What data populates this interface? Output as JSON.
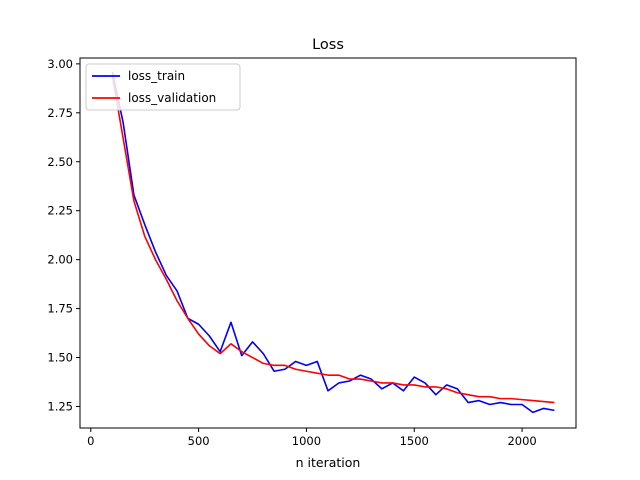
{
  "chart_data": {
    "type": "line",
    "title": "Loss",
    "xlabel": "n iteration",
    "ylabel": "",
    "xlim": [
      -50,
      2250
    ],
    "ylim": [
      1.14,
      3.03
    ],
    "xticks": [
      0,
      500,
      1000,
      1500,
      2000
    ],
    "xtick_labels": [
      "0",
      "500",
      "1000",
      "1500",
      "2000"
    ],
    "yticks": [
      1.25,
      1.5,
      1.75,
      2.0,
      2.25,
      2.5,
      2.75,
      3.0
    ],
    "ytick_labels": [
      "1.25",
      "1.50",
      "1.75",
      "2.00",
      "2.25",
      "2.50",
      "2.75",
      "3.00"
    ],
    "grid": false,
    "legend_position": "top-left",
    "series": [
      {
        "name": "loss_train",
        "color": "#0000ff",
        "x": [
          100,
          150,
          200,
          250,
          300,
          350,
          400,
          450,
          500,
          550,
          600,
          650,
          700,
          750,
          800,
          850,
          900,
          950,
          1000,
          1050,
          1100,
          1150,
          1200,
          1250,
          1300,
          1350,
          1400,
          1450,
          1500,
          1550,
          1600,
          1650,
          1700,
          1750,
          1800,
          1850,
          1900,
          1950,
          2000,
          2050,
          2100,
          2150
        ],
        "y": [
          2.96,
          2.7,
          2.33,
          2.18,
          2.04,
          1.92,
          1.84,
          1.7,
          1.67,
          1.61,
          1.53,
          1.68,
          1.51,
          1.58,
          1.52,
          1.43,
          1.44,
          1.48,
          1.46,
          1.48,
          1.33,
          1.37,
          1.38,
          1.41,
          1.39,
          1.34,
          1.37,
          1.33,
          1.4,
          1.37,
          1.31,
          1.36,
          1.34,
          1.27,
          1.28,
          1.26,
          1.27,
          1.26,
          1.26,
          1.22,
          1.24,
          1.23
        ]
      },
      {
        "name": "loss_validation",
        "color": "#ff0000",
        "x": [
          100,
          150,
          200,
          250,
          300,
          350,
          400,
          450,
          500,
          550,
          600,
          650,
          700,
          750,
          800,
          850,
          900,
          950,
          1000,
          1050,
          1100,
          1150,
          1200,
          1250,
          1300,
          1350,
          1400,
          1450,
          1500,
          1550,
          1600,
          1650,
          1700,
          1750,
          1800,
          1850,
          1900,
          1950,
          2000,
          2050,
          2100,
          2150
        ],
        "y": [
          2.94,
          2.62,
          2.3,
          2.12,
          2.0,
          1.9,
          1.79,
          1.7,
          1.62,
          1.56,
          1.52,
          1.57,
          1.53,
          1.5,
          1.47,
          1.46,
          1.46,
          1.44,
          1.43,
          1.42,
          1.41,
          1.41,
          1.39,
          1.39,
          1.38,
          1.37,
          1.37,
          1.36,
          1.36,
          1.35,
          1.35,
          1.34,
          1.32,
          1.31,
          1.3,
          1.3,
          1.29,
          1.29,
          1.285,
          1.28,
          1.275,
          1.27
        ]
      }
    ]
  }
}
